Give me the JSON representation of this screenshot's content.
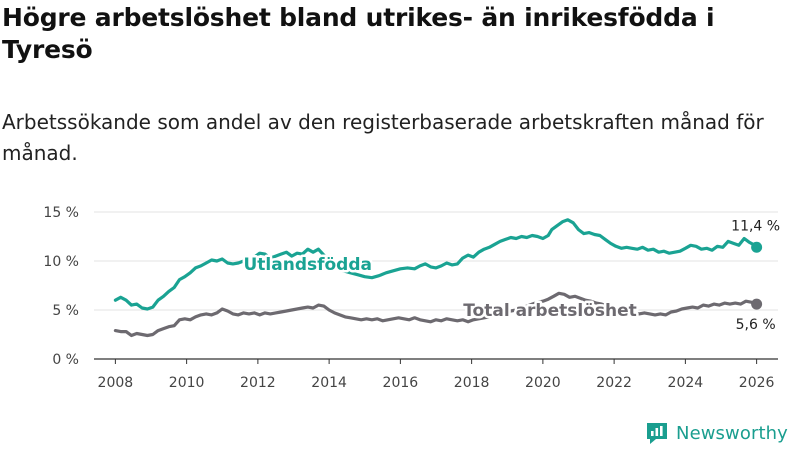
{
  "title": "Högre arbetslöshet bland utrikes- än inrikesfödda i Tyresö",
  "subtitle": "Arbetssökande som andel av den registerbaserade arbetskraften månad för månad.",
  "brand": {
    "name": "Newsworthy",
    "logo_icon": "newsworthy-bar-chart-icon",
    "color": "#1a9e8f"
  },
  "colors": {
    "utlandsfodda": "#1aa393",
    "total": "#6d6a70",
    "grid": "#e3e3e3",
    "axis": "#444444",
    "annotation": "#222222"
  },
  "chart_data": {
    "type": "line",
    "title": "Högre arbetslöshet bland utrikes- än inrikesfödda i Tyresö",
    "subtitle": "Arbetssökande som andel av den registerbaserade arbetskraften månad för månad.",
    "xlabel": "",
    "ylabel": "",
    "x_ticks": [
      "2008",
      "2010",
      "2012",
      "2014",
      "2016",
      "2018",
      "2020",
      "2022",
      "2024",
      "2026"
    ],
    "x_tick_values": [
      2008,
      2010,
      2012,
      2014,
      2016,
      2018,
      2020,
      2022,
      2024,
      2026
    ],
    "y_ticks": [
      "0 %",
      "5 %",
      "10 %",
      "15 %"
    ],
    "y_tick_values": [
      0,
      5,
      10,
      15
    ],
    "xlim": [
      2007.4,
      2026.6
    ],
    "ylim": [
      0,
      15
    ],
    "grid": true,
    "legend": "inline labels",
    "series": [
      {
        "name": "Utlandsfödda",
        "label": "Utlandsfödda",
        "color": "#1aa393",
        "points": [
          [
            2008.0,
            6.0
          ],
          [
            2008.15,
            6.3
          ],
          [
            2008.3,
            6.0
          ],
          [
            2008.45,
            5.5
          ],
          [
            2008.6,
            5.6
          ],
          [
            2008.75,
            5.2
          ],
          [
            2008.9,
            5.1
          ],
          [
            2009.05,
            5.3
          ],
          [
            2009.2,
            6.0
          ],
          [
            2009.35,
            6.4
          ],
          [
            2009.5,
            6.9
          ],
          [
            2009.65,
            7.3
          ],
          [
            2009.8,
            8.1
          ],
          [
            2009.95,
            8.4
          ],
          [
            2010.1,
            8.8
          ],
          [
            2010.25,
            9.3
          ],
          [
            2010.4,
            9.5
          ],
          [
            2010.55,
            9.8
          ],
          [
            2010.7,
            10.1
          ],
          [
            2010.85,
            10.0
          ],
          [
            2011.0,
            10.2
          ],
          [
            2011.15,
            9.8
          ],
          [
            2011.3,
            9.7
          ],
          [
            2011.45,
            9.8
          ],
          [
            2011.6,
            10.0
          ],
          [
            2011.75,
            9.9
          ],
          [
            2011.9,
            10.4
          ],
          [
            2012.05,
            10.8
          ],
          [
            2012.2,
            10.7
          ],
          [
            2012.35,
            10.3
          ],
          [
            2012.5,
            10.5
          ],
          [
            2012.65,
            10.7
          ],
          [
            2012.8,
            10.9
          ],
          [
            2012.95,
            10.5
          ],
          [
            2013.1,
            10.8
          ],
          [
            2013.25,
            10.7
          ],
          [
            2013.4,
            11.2
          ],
          [
            2013.55,
            10.9
          ],
          [
            2013.7,
            11.2
          ],
          [
            2013.85,
            10.6
          ],
          [
            2014.0,
            10.1
          ],
          [
            2014.2,
            9.6
          ],
          [
            2014.4,
            9.0
          ],
          [
            2014.6,
            8.8
          ],
          [
            2014.8,
            8.6
          ],
          [
            2015.0,
            8.4
          ],
          [
            2015.2,
            8.3
          ],
          [
            2015.4,
            8.5
          ],
          [
            2015.6,
            8.8
          ],
          [
            2015.8,
            9.0
          ],
          [
            2016.0,
            9.2
          ],
          [
            2016.2,
            9.3
          ],
          [
            2016.4,
            9.2
          ],
          [
            2016.55,
            9.5
          ],
          [
            2016.7,
            9.7
          ],
          [
            2016.85,
            9.4
          ],
          [
            2017.0,
            9.3
          ],
          [
            2017.15,
            9.5
          ],
          [
            2017.3,
            9.8
          ],
          [
            2017.45,
            9.6
          ],
          [
            2017.6,
            9.7
          ],
          [
            2017.75,
            10.3
          ],
          [
            2017.9,
            10.6
          ],
          [
            2018.05,
            10.4
          ],
          [
            2018.2,
            10.9
          ],
          [
            2018.35,
            11.2
          ],
          [
            2018.5,
            11.4
          ],
          [
            2018.65,
            11.7
          ],
          [
            2018.8,
            12.0
          ],
          [
            2018.95,
            12.2
          ],
          [
            2019.1,
            12.4
          ],
          [
            2019.25,
            12.3
          ],
          [
            2019.4,
            12.5
          ],
          [
            2019.55,
            12.4
          ],
          [
            2019.7,
            12.6
          ],
          [
            2019.85,
            12.5
          ],
          [
            2020.0,
            12.3
          ],
          [
            2020.15,
            12.6
          ],
          [
            2020.25,
            13.2
          ],
          [
            2020.4,
            13.6
          ],
          [
            2020.55,
            14.0
          ],
          [
            2020.7,
            14.2
          ],
          [
            2020.85,
            13.9
          ],
          [
            2021.0,
            13.2
          ],
          [
            2021.15,
            12.8
          ],
          [
            2021.3,
            12.9
          ],
          [
            2021.45,
            12.7
          ],
          [
            2021.6,
            12.6
          ],
          [
            2021.75,
            12.2
          ],
          [
            2021.9,
            11.8
          ],
          [
            2022.05,
            11.5
          ],
          [
            2022.2,
            11.3
          ],
          [
            2022.35,
            11.4
          ],
          [
            2022.5,
            11.3
          ],
          [
            2022.65,
            11.2
          ],
          [
            2022.8,
            11.4
          ],
          [
            2022.95,
            11.1
          ],
          [
            2023.1,
            11.2
          ],
          [
            2023.25,
            10.9
          ],
          [
            2023.4,
            11.0
          ],
          [
            2023.55,
            10.8
          ],
          [
            2023.7,
            10.9
          ],
          [
            2023.85,
            11.0
          ],
          [
            2024.0,
            11.3
          ],
          [
            2024.15,
            11.6
          ],
          [
            2024.3,
            11.5
          ],
          [
            2024.45,
            11.2
          ],
          [
            2024.6,
            11.3
          ],
          [
            2024.75,
            11.1
          ],
          [
            2024.9,
            11.5
          ],
          [
            2025.05,
            11.4
          ],
          [
            2025.2,
            12.0
          ],
          [
            2025.35,
            11.8
          ],
          [
            2025.5,
            11.6
          ],
          [
            2025.65,
            12.3
          ],
          [
            2025.8,
            11.9
          ],
          [
            2025.95,
            11.6
          ],
          [
            2026.0,
            11.4
          ]
        ],
        "last_value_label": "11,4 %"
      },
      {
        "name": "Total arbetslöshet",
        "label": "Total arbetslöshet",
        "color": "#6d6a70",
        "points": [
          [
            2008.0,
            2.9
          ],
          [
            2008.15,
            2.8
          ],
          [
            2008.3,
            2.8
          ],
          [
            2008.45,
            2.4
          ],
          [
            2008.6,
            2.6
          ],
          [
            2008.75,
            2.5
          ],
          [
            2008.9,
            2.4
          ],
          [
            2009.05,
            2.5
          ],
          [
            2009.2,
            2.9
          ],
          [
            2009.35,
            3.1
          ],
          [
            2009.5,
            3.3
          ],
          [
            2009.65,
            3.4
          ],
          [
            2009.8,
            4.0
          ],
          [
            2009.95,
            4.1
          ],
          [
            2010.1,
            4.0
          ],
          [
            2010.25,
            4.3
          ],
          [
            2010.4,
            4.5
          ],
          [
            2010.55,
            4.6
          ],
          [
            2010.7,
            4.5
          ],
          [
            2010.85,
            4.7
          ],
          [
            2011.0,
            5.1
          ],
          [
            2011.15,
            4.9
          ],
          [
            2011.3,
            4.6
          ],
          [
            2011.45,
            4.5
          ],
          [
            2011.6,
            4.7
          ],
          [
            2011.75,
            4.6
          ],
          [
            2011.9,
            4.7
          ],
          [
            2012.05,
            4.5
          ],
          [
            2012.2,
            4.7
          ],
          [
            2012.35,
            4.6
          ],
          [
            2012.5,
            4.7
          ],
          [
            2012.65,
            4.8
          ],
          [
            2012.8,
            4.9
          ],
          [
            2012.95,
            5.0
          ],
          [
            2013.1,
            5.1
          ],
          [
            2013.25,
            5.2
          ],
          [
            2013.4,
            5.3
          ],
          [
            2013.55,
            5.2
          ],
          [
            2013.7,
            5.5
          ],
          [
            2013.85,
            5.4
          ],
          [
            2014.0,
            5.0
          ],
          [
            2014.15,
            4.7
          ],
          [
            2014.3,
            4.5
          ],
          [
            2014.45,
            4.3
          ],
          [
            2014.6,
            4.2
          ],
          [
            2014.75,
            4.1
          ],
          [
            2014.9,
            4.0
          ],
          [
            2015.05,
            4.1
          ],
          [
            2015.2,
            4.0
          ],
          [
            2015.35,
            4.1
          ],
          [
            2015.5,
            3.9
          ],
          [
            2015.65,
            4.0
          ],
          [
            2015.8,
            4.1
          ],
          [
            2015.95,
            4.2
          ],
          [
            2016.1,
            4.1
          ],
          [
            2016.25,
            4.0
          ],
          [
            2016.4,
            4.2
          ],
          [
            2016.55,
            4.0
          ],
          [
            2016.7,
            3.9
          ],
          [
            2016.85,
            3.8
          ],
          [
            2017.0,
            4.0
          ],
          [
            2017.15,
            3.9
          ],
          [
            2017.3,
            4.1
          ],
          [
            2017.45,
            4.0
          ],
          [
            2017.6,
            3.9
          ],
          [
            2017.75,
            4.0
          ],
          [
            2017.9,
            3.8
          ],
          [
            2018.05,
            4.0
          ],
          [
            2018.2,
            4.1
          ],
          [
            2018.35,
            4.2
          ],
          [
            2018.5,
            4.3
          ],
          [
            2018.65,
            4.5
          ],
          [
            2018.8,
            4.6
          ],
          [
            2018.95,
            4.7
          ],
          [
            2019.1,
            4.9
          ],
          [
            2019.25,
            5.0
          ],
          [
            2019.4,
            5.2
          ],
          [
            2019.55,
            5.4
          ],
          [
            2019.7,
            5.6
          ],
          [
            2019.85,
            5.8
          ],
          [
            2020.0,
            5.9
          ],
          [
            2020.15,
            6.1
          ],
          [
            2020.3,
            6.4
          ],
          [
            2020.45,
            6.7
          ],
          [
            2020.6,
            6.6
          ],
          [
            2020.75,
            6.3
          ],
          [
            2020.9,
            6.4
          ],
          [
            2021.05,
            6.2
          ],
          [
            2021.2,
            6.0
          ],
          [
            2021.35,
            5.9
          ],
          [
            2021.5,
            5.7
          ],
          [
            2021.65,
            5.6
          ],
          [
            2021.8,
            5.4
          ],
          [
            2021.95,
            5.2
          ],
          [
            2022.1,
            5.0
          ],
          [
            2022.25,
            4.9
          ],
          [
            2022.4,
            4.8
          ],
          [
            2022.55,
            4.7
          ],
          [
            2022.7,
            4.6
          ],
          [
            2022.85,
            4.7
          ],
          [
            2023.0,
            4.6
          ],
          [
            2023.15,
            4.5
          ],
          [
            2023.3,
            4.6
          ],
          [
            2023.45,
            4.5
          ],
          [
            2023.6,
            4.8
          ],
          [
            2023.75,
            4.9
          ],
          [
            2023.9,
            5.1
          ],
          [
            2024.05,
            5.2
          ],
          [
            2024.2,
            5.3
          ],
          [
            2024.35,
            5.2
          ],
          [
            2024.5,
            5.5
          ],
          [
            2024.65,
            5.4
          ],
          [
            2024.8,
            5.6
          ],
          [
            2024.95,
            5.5
          ],
          [
            2025.1,
            5.7
          ],
          [
            2025.25,
            5.6
          ],
          [
            2025.4,
            5.7
          ],
          [
            2025.55,
            5.6
          ],
          [
            2025.7,
            5.9
          ],
          [
            2025.85,
            5.8
          ],
          [
            2026.0,
            5.6
          ]
        ],
        "last_value_label": "5,6 %"
      }
    ]
  }
}
